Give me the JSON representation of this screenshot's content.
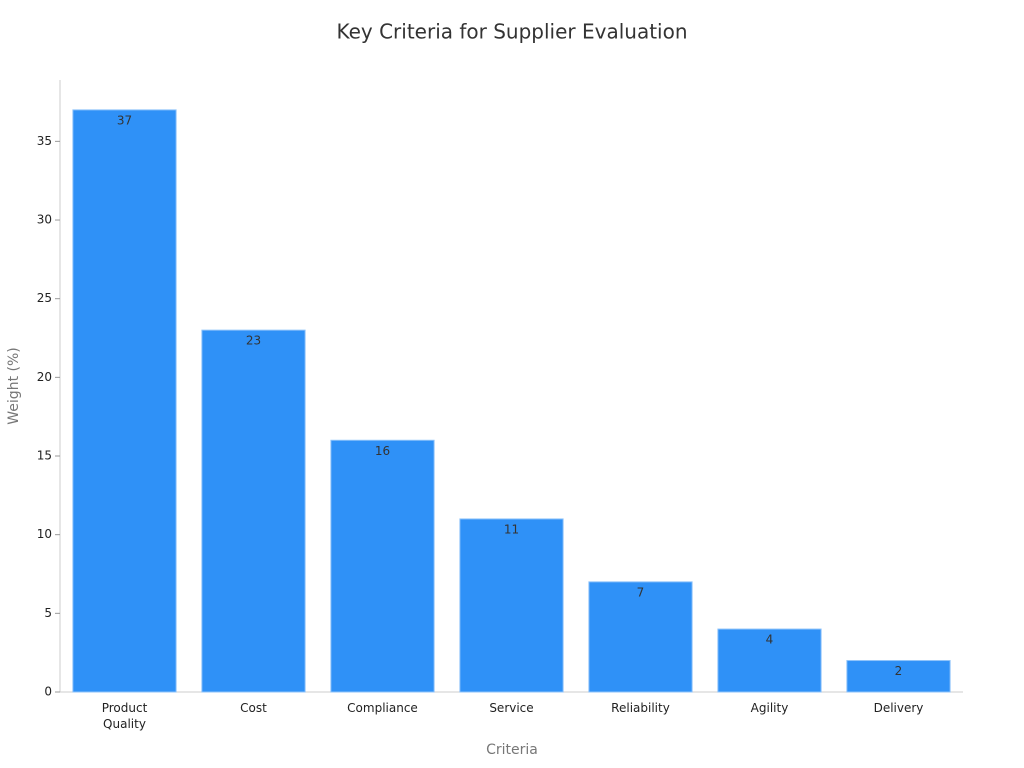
{
  "chart_data": {
    "type": "bar",
    "title": "Key Criteria for Supplier Evaluation",
    "x_label": "Criteria",
    "y_label": "Weight (%)",
    "categories": [
      "Product Quality",
      "Cost",
      "Compliance",
      "Service",
      "Reliability",
      "Agility",
      "Delivery"
    ],
    "values": [
      37,
      23,
      16,
      11,
      7,
      4,
      2
    ],
    "color": "#2f91f7",
    "ylim": [
      0,
      38.9
    ],
    "yticks": [
      0,
      5,
      10,
      15,
      20,
      25,
      30,
      35
    ],
    "grid": false
  }
}
